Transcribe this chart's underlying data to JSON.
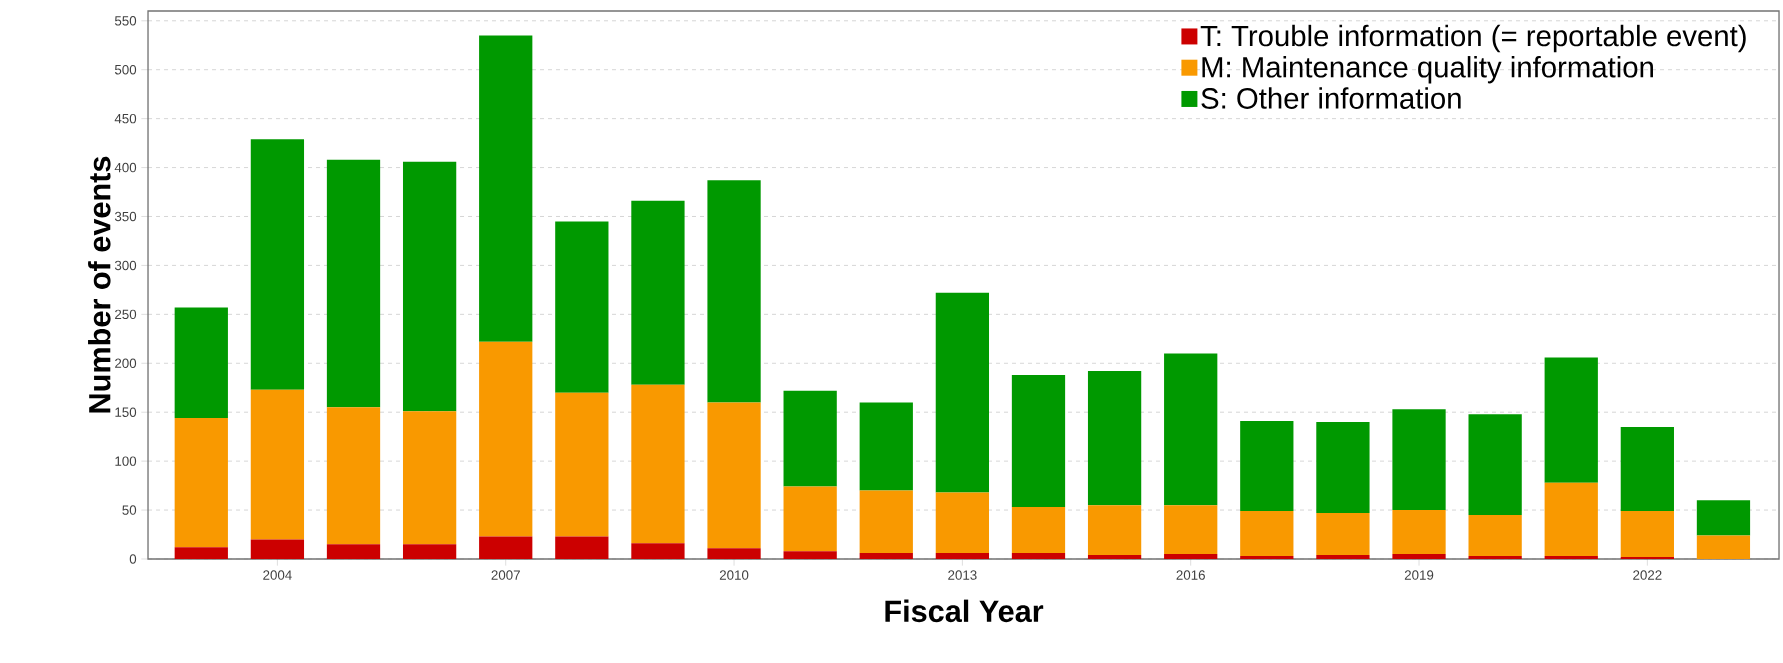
{
  "chart_data": {
    "type": "bar",
    "stacked": true,
    "xlabel": "Fiscal Year",
    "ylabel": "Number of events",
    "categories": [
      null,
      "2004",
      null,
      null,
      "2007",
      null,
      null,
      "2010",
      null,
      null,
      "2013",
      null,
      null,
      "2016",
      null,
      null,
      "2019",
      null,
      null,
      "2022",
      null
    ],
    "series": [
      {
        "name": "T: Trouble information (= reportable event)",
        "color": "#cc0000",
        "values": [
          12,
          20,
          15,
          15,
          23,
          23,
          16,
          11,
          8,
          6,
          6,
          6,
          4,
          5,
          3,
          4,
          5,
          3,
          3,
          2,
          0
        ]
      },
      {
        "name": "M: Maintenance quality information",
        "color": "#f99900",
        "values": [
          132,
          153,
          140,
          136,
          199,
          147,
          162,
          149,
          66,
          64,
          62,
          47,
          51,
          50,
          46,
          43,
          45,
          42,
          75,
          47,
          24
        ]
      },
      {
        "name": "S: Other information",
        "color": "#009900",
        "values": [
          113,
          256,
          253,
          255,
          313,
          175,
          188,
          227,
          98,
          90,
          204,
          135,
          137,
          155,
          92,
          93,
          103,
          103,
          128,
          86,
          36
        ]
      }
    ],
    "ylim": [
      0,
      560
    ],
    "yticks": [
      0,
      50,
      100,
      150,
      200,
      250,
      300,
      350,
      400,
      450,
      500,
      550
    ],
    "grid": "y",
    "legend": "top right"
  }
}
